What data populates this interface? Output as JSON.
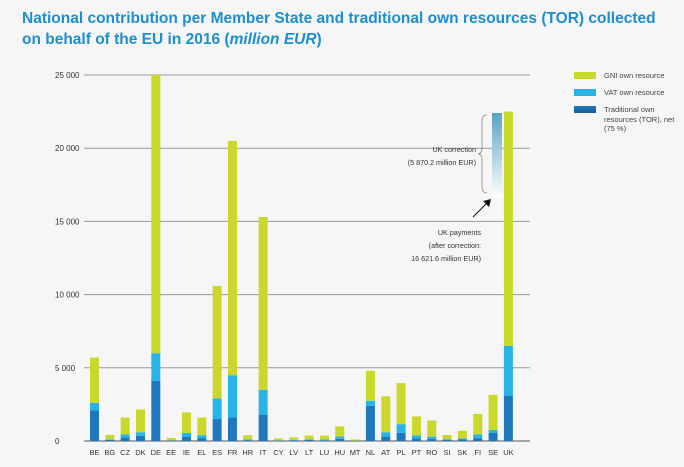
{
  "title": {
    "text": "National contribution per Member State and traditional own resources (TOR) collected on behalf of the EU in 2016 (",
    "unit": "million EUR",
    "close": ")"
  },
  "colors": {
    "gni": "#c9d82a",
    "vat": "#27b5e8",
    "tor": "#1f78bd",
    "tor_dark": "#155e9c",
    "grid": "#9a9a9a",
    "title": "#1b8fcf"
  },
  "legend": [
    {
      "label": "GNI own resource",
      "color": "#c9d82a"
    },
    {
      "label": "VAT own resource",
      "color": "#27b5e8"
    },
    {
      "label": "Traditional own resources (TOR), net (75 %)",
      "color": "#1f78bd"
    }
  ],
  "annotations": {
    "uk_correction_line1": "UK correction",
    "uk_correction_line2": "(5 870.2 million EUR)",
    "uk_payments_line1": "UK payments",
    "uk_payments_line2": "(after correction:",
    "uk_payments_line3": "16 621.6 million EUR)"
  },
  "chart_data": {
    "type": "bar",
    "stacked": true,
    "title": "National contribution per Member State and traditional own resources (TOR) collected on behalf of the EU in 2016 (million EUR)",
    "ylim": [
      0,
      25000
    ],
    "yticks": [
      0,
      5000,
      10000,
      15000,
      20000,
      25000
    ],
    "ytick_labels": [
      "0",
      "5 000",
      "10 000",
      "15 000",
      "20 000",
      "25 000"
    ],
    "grid": true,
    "legend_position": "right",
    "categories": [
      "BE",
      "BG",
      "CZ",
      "DK",
      "DE",
      "EE",
      "IE",
      "EL",
      "ES",
      "FR",
      "HR",
      "IT",
      "CY",
      "LV",
      "LT",
      "LU",
      "HU",
      "MT",
      "NL",
      "AT",
      "PL",
      "PT",
      "RO",
      "SI",
      "SK",
      "FI",
      "SE",
      "UK"
    ],
    "series": [
      {
        "name": "Traditional own resources (TOR), net (75 %)",
        "values": [
          2100,
          80,
          250,
          350,
          4100,
          30,
          300,
          200,
          1500,
          1600,
          60,
          1800,
          30,
          50,
          90,
          40,
          150,
          15,
          2400,
          300,
          550,
          180,
          150,
          80,
          100,
          200,
          550,
          3100
        ]
      },
      {
        "name": "VAT own resource",
        "values": [
          500,
          40,
          200,
          250,
          1900,
          20,
          250,
          200,
          1400,
          2900,
          50,
          1700,
          20,
          20,
          30,
          60,
          150,
          10,
          350,
          300,
          600,
          200,
          150,
          50,
          80,
          250,
          200,
          3400
        ]
      },
      {
        "name": "GNI own resource",
        "values": [
          3100,
          300,
          1150,
          1550,
          19000,
          160,
          1400,
          1200,
          7700,
          16000,
          280,
          11800,
          130,
          180,
          250,
          270,
          700,
          80,
          2050,
          2450,
          2800,
          1300,
          1100,
          280,
          520,
          1400,
          2400,
          16000
        ]
      }
    ]
  }
}
